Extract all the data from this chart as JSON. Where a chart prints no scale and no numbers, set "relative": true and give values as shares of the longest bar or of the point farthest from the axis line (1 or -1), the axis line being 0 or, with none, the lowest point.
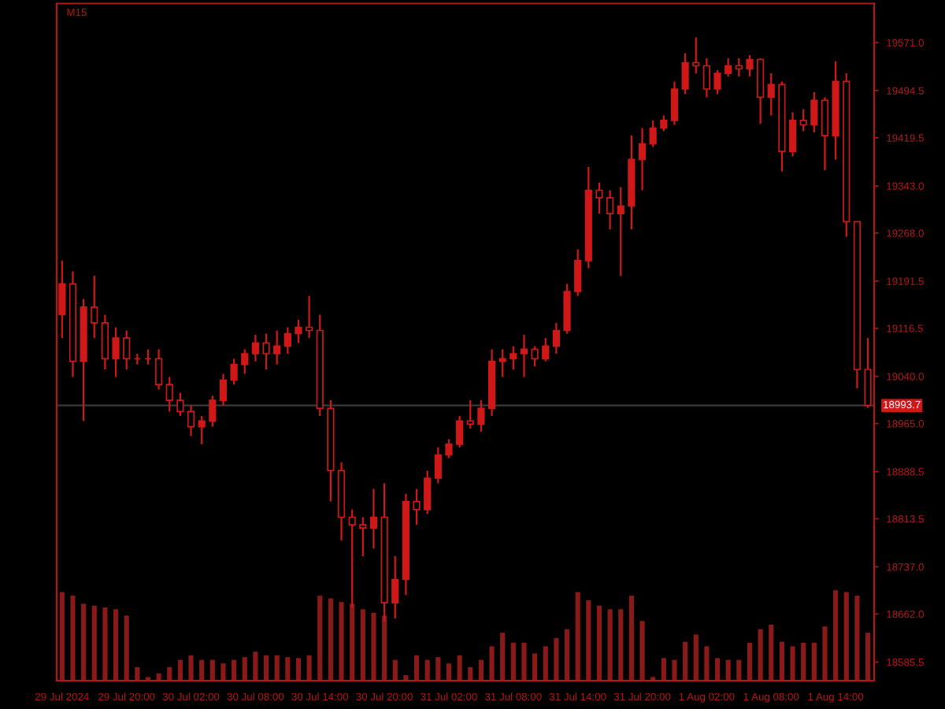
{
  "chart_data": [
    {
      "type": "candlestick",
      "title": "M15",
      "color": "#d01818",
      "x": [
        "2024-07-29T14:00",
        "2024-07-29T15:00",
        "2024-07-29T16:00",
        "2024-07-29T17:00",
        "2024-07-29T18:00",
        "2024-07-29T19:00",
        "2024-07-29T20:00",
        "2024-07-29T21:00",
        "2024-07-29T22:00",
        "2024-07-29T23:00",
        "2024-07-30T00:00",
        "2024-07-30T01:00",
        "2024-07-30T02:00",
        "2024-07-30T03:00",
        "2024-07-30T04:00",
        "2024-07-30T05:00",
        "2024-07-30T06:00",
        "2024-07-30T07:00",
        "2024-07-30T08:00",
        "2024-07-30T09:00",
        "2024-07-30T10:00",
        "2024-07-30T11:00",
        "2024-07-30T12:00",
        "2024-07-30T13:00",
        "2024-07-30T14:00",
        "2024-07-30T15:00",
        "2024-07-30T16:00",
        "2024-07-30T17:00",
        "2024-07-30T18:00",
        "2024-07-30T19:00",
        "2024-07-30T20:00",
        "2024-07-30T21:00",
        "2024-07-30T22:00",
        "2024-07-30T23:00",
        "2024-07-31T00:00",
        "2024-07-31T01:00",
        "2024-07-31T02:00",
        "2024-07-31T03:00",
        "2024-07-31T04:00",
        "2024-07-31T05:00",
        "2024-07-31T06:00",
        "2024-07-31T07:00",
        "2024-07-31T08:00",
        "2024-07-31T09:00",
        "2024-07-31T10:00",
        "2024-07-31T11:00",
        "2024-07-31T12:00",
        "2024-07-31T13:00",
        "2024-07-31T14:00",
        "2024-07-31T15:00",
        "2024-07-31T16:00",
        "2024-07-31T17:00",
        "2024-07-31T18:00",
        "2024-07-31T19:00",
        "2024-07-31T20:00",
        "2024-07-31T21:00",
        "2024-07-31T22:00",
        "2024-07-31T23:00",
        "2024-08-01T00:00",
        "2024-08-01T01:00",
        "2024-08-01T02:00",
        "2024-08-01T03:00",
        "2024-08-01T04:00",
        "2024-08-01T05:00",
        "2024-08-01T06:00",
        "2024-08-01T07:00",
        "2024-08-01T08:00",
        "2024-08-01T09:00",
        "2024-08-01T10:00",
        "2024-08-01T11:00",
        "2024-08-01T12:00",
        "2024-08-01T13:00",
        "2024-08-01T14:00",
        "2024-08-01T15:00",
        "2024-08-01T16:00",
        "2024-08-01T17:00"
      ],
      "ohlc": [
        [
          19138,
          19224,
          19101,
          19187
        ],
        [
          19187,
          19207,
          19039,
          19064
        ],
        [
          19064,
          19163,
          18969,
          19150
        ],
        [
          19150,
          19200,
          19101,
          19125
        ],
        [
          19125,
          19138,
          19051,
          19068
        ],
        [
          19068,
          19118,
          19039,
          19101
        ],
        [
          19101,
          19113,
          19051,
          19068
        ],
        [
          19068,
          19076,
          19059,
          19068
        ],
        [
          19068,
          19083,
          19059,
          19068
        ],
        [
          19068,
          19083,
          19019,
          19027
        ],
        [
          19027,
          19039,
          18984,
          19002
        ],
        [
          19002,
          19014,
          18977,
          18984
        ],
        [
          18984,
          18994,
          18945,
          18960
        ],
        [
          18960,
          18977,
          18932,
          18969
        ],
        [
          18969,
          19009,
          18960,
          19002
        ],
        [
          19002,
          19044,
          18994,
          19034
        ],
        [
          19034,
          19068,
          19027,
          19059
        ],
        [
          19059,
          19083,
          19044,
          19076
        ],
        [
          19076,
          19106,
          19064,
          19093
        ],
        [
          19093,
          19108,
          19051,
          19076
        ],
        [
          19076,
          19113,
          19059,
          19088
        ],
        [
          19088,
          19118,
          19076,
          19108
        ],
        [
          19108,
          19130,
          19093,
          19118
        ],
        [
          19118,
          19168,
          19101,
          19113
        ],
        [
          19113,
          19138,
          18977,
          18989
        ],
        [
          18989,
          19002,
          18841,
          18890
        ],
        [
          18890,
          18903,
          18779,
          18816
        ],
        [
          18816,
          18828,
          18672,
          18804
        ],
        [
          18804,
          18816,
          18754,
          18799
        ],
        [
          18799,
          18861,
          18766,
          18816
        ],
        [
          18816,
          18870,
          18650,
          18680
        ],
        [
          18680,
          18754,
          18655,
          18717
        ],
        [
          18717,
          18853,
          18692,
          18841
        ],
        [
          18841,
          18861,
          18804,
          18828
        ],
        [
          18828,
          18890,
          18821,
          18878
        ],
        [
          18878,
          18927,
          18870,
          18915
        ],
        [
          18915,
          18940,
          18910,
          18932
        ],
        [
          18932,
          18977,
          18927,
          18969
        ],
        [
          18969,
          19002,
          18957,
          18964
        ],
        [
          18964,
          19002,
          18952,
          18989
        ],
        [
          18989,
          19083,
          18977,
          19064
        ],
        [
          19064,
          19083,
          19039,
          19068
        ],
        [
          19068,
          19088,
          19051,
          19076
        ],
        [
          19076,
          19106,
          19039,
          19083
        ],
        [
          19083,
          19088,
          19056,
          19068
        ],
        [
          19068,
          19101,
          19064,
          19088
        ],
        [
          19088,
          19125,
          19076,
          19113
        ],
        [
          19113,
          19187,
          19108,
          19175
        ],
        [
          19175,
          19242,
          19168,
          19224
        ],
        [
          19224,
          19373,
          19212,
          19336
        ],
        [
          19336,
          19348,
          19299,
          19324
        ],
        [
          19324,
          19336,
          19274,
          19299
        ],
        [
          19299,
          19341,
          19200,
          19311
        ],
        [
          19311,
          19423,
          19274,
          19385
        ],
        [
          19385,
          19435,
          19336,
          19410
        ],
        [
          19410,
          19447,
          19405,
          19435
        ],
        [
          19435,
          19455,
          19430,
          19447
        ],
        [
          19447,
          19509,
          19440,
          19497
        ],
        [
          19497,
          19554,
          19489,
          19539
        ],
        [
          19539,
          19579,
          19522,
          19534
        ],
        [
          19534,
          19546,
          19484,
          19497
        ],
        [
          19497,
          19527,
          19489,
          19522
        ],
        [
          19522,
          19546,
          19517,
          19534
        ],
        [
          19534,
          19546,
          19517,
          19529
        ],
        [
          19529,
          19551,
          19517,
          19544
        ],
        [
          19544,
          19546,
          19442,
          19484
        ],
        [
          19484,
          19522,
          19455,
          19504
        ],
        [
          19504,
          19509,
          19366,
          19398
        ],
        [
          19398,
          19460,
          19390,
          19447
        ],
        [
          19447,
          19465,
          19430,
          19440
        ],
        [
          19440,
          19492,
          19428,
          19479
        ],
        [
          19479,
          19484,
          19368,
          19423
        ],
        [
          19423,
          19541,
          19385,
          19509
        ],
        [
          19509,
          19522,
          19262,
          19286
        ],
        [
          19286,
          19286,
          19021,
          19051
        ],
        [
          19051,
          19101,
          18990,
          18993.7
        ]
      ],
      "xlim": [
        "2024-07-29T13:30",
        "2024-08-01T17:35"
      ],
      "ylim": [
        18556,
        19633
      ],
      "yticks": [
        {
          "value": 19571,
          "label": "19571.0"
        },
        19494.5,
        19419.5,
        {
          "value": 19343,
          "label": "19343.0"
        },
        {
          "value": 19268,
          "label": "19268.0"
        },
        19191.5,
        19116.5,
        {
          "value": 19040,
          "label": "19040.0"
        },
        {
          "value": 18965,
          "label": "18965.0"
        },
        18888.5,
        18813.5,
        {
          "value": 18737,
          "label": "18737.0"
        },
        {
          "value": 18662,
          "label": "18662.0"
        },
        18585.5
      ],
      "ref_lines": [
        {
          "axis": "y",
          "value": 18993.7,
          "label": "18993.7",
          "color": "#3a3a3a"
        }
      ],
      "tick_labels": "y",
      "grid": false,
      "legend": false
    },
    {
      "type": "bar",
      "relative": true,
      "color": "#8a1a1a",
      "x": [
        "2024-07-29T14:00",
        "2024-07-29T15:00",
        "2024-07-29T16:00",
        "2024-07-29T17:00",
        "2024-07-29T18:00",
        "2024-07-29T19:00",
        "2024-07-29T20:00",
        "2024-07-29T21:00",
        "2024-07-29T22:00",
        "2024-07-29T23:00",
        "2024-07-30T00:00",
        "2024-07-30T01:00",
        "2024-07-30T02:00",
        "2024-07-30T03:00",
        "2024-07-30T04:00",
        "2024-07-30T05:00",
        "2024-07-30T06:00",
        "2024-07-30T07:00",
        "2024-07-30T08:00",
        "2024-07-30T09:00",
        "2024-07-30T10:00",
        "2024-07-30T11:00",
        "2024-07-30T12:00",
        "2024-07-30T13:00",
        "2024-07-30T14:00",
        "2024-07-30T15:00",
        "2024-07-30T16:00",
        "2024-07-30T17:00",
        "2024-07-30T18:00",
        "2024-07-30T19:00",
        "2024-07-30T20:00",
        "2024-07-30T21:00",
        "2024-07-30T22:00",
        "2024-07-30T23:00",
        "2024-07-31T00:00",
        "2024-07-31T01:00",
        "2024-07-31T02:00",
        "2024-07-31T03:00",
        "2024-07-31T04:00",
        "2024-07-31T05:00",
        "2024-07-31T06:00",
        "2024-07-31T07:00",
        "2024-07-31T08:00",
        "2024-07-31T09:00",
        "2024-07-31T10:00",
        "2024-07-31T11:00",
        "2024-07-31T12:00",
        "2024-07-31T13:00",
        "2024-07-31T14:00",
        "2024-07-31T15:00",
        "2024-07-31T16:00",
        "2024-07-31T17:00",
        "2024-07-31T18:00",
        "2024-07-31T19:00",
        "2024-07-31T20:00",
        "2024-07-31T21:00",
        "2024-07-31T22:00",
        "2024-07-31T23:00",
        "2024-08-01T00:00",
        "2024-08-01T01:00",
        "2024-08-01T02:00",
        "2024-08-01T03:00",
        "2024-08-01T04:00",
        "2024-08-01T05:00",
        "2024-08-01T06:00",
        "2024-08-01T07:00",
        "2024-08-01T08:00",
        "2024-08-01T09:00",
        "2024-08-01T10:00",
        "2024-08-01T11:00",
        "2024-08-01T12:00",
        "2024-08-01T13:00",
        "2024-08-01T14:00",
        "2024-08-01T15:00",
        "2024-08-01T16:00",
        "2024-08-01T17:00"
      ],
      "values": [
        0.98,
        0.94,
        0.85,
        0.83,
        0.81,
        0.79,
        0.72,
        0.15,
        0.04,
        0.08,
        0.15,
        0.23,
        0.28,
        0.23,
        0.23,
        0.19,
        0.23,
        0.26,
        0.32,
        0.28,
        0.28,
        0.26,
        0.25,
        0.28,
        0.94,
        0.91,
        0.87,
        0.85,
        0.79,
        0.75,
        0.72,
        0.23,
        0.06,
        0.28,
        0.23,
        0.26,
        0.19,
        0.28,
        0.15,
        0.23,
        0.38,
        0.53,
        0.42,
        0.42,
        0.3,
        0.38,
        0.47,
        0.57,
        0.98,
        0.89,
        0.83,
        0.79,
        0.79,
        0.94,
        0.66,
        0.04,
        0.25,
        0.23,
        0.43,
        0.51,
        0.38,
        0.25,
        0.23,
        0.23,
        0.42,
        0.57,
        0.62,
        0.43,
        0.38,
        0.42,
        0.42,
        0.6,
        1,
        0.98,
        0.94,
        0.53
      ],
      "xlim": [
        "2024-07-29T13:30",
        "2024-08-01T17:35"
      ],
      "xticks": [
        {
          "value": "2024-07-29T14:00",
          "label": "29 Jul 2024"
        },
        {
          "value": "2024-07-29T20:00",
          "label": "29 Jul 20:00"
        },
        {
          "value": "2024-07-30T02:00",
          "label": "30 Jul 02:00"
        },
        {
          "value": "2024-07-30T08:00",
          "label": "30 Jul 08:00"
        },
        {
          "value": "2024-07-30T14:00",
          "label": "30 Jul 14:00"
        },
        {
          "value": "2024-07-30T20:00",
          "label": "30 Jul 20:00"
        },
        {
          "value": "2024-07-31T02:00",
          "label": "31 Jul 02:00"
        },
        {
          "value": "2024-07-31T08:00",
          "label": "31 Jul 08:00"
        },
        {
          "value": "2024-07-31T14:00",
          "label": "31 Jul 14:00"
        },
        {
          "value": "2024-07-31T20:00",
          "label": "31 Jul 20:00"
        },
        {
          "value": "2024-08-01T02:00",
          "label": "1 Aug 02:00"
        },
        {
          "value": "2024-08-01T08:00",
          "label": "1 Aug 08:00"
        },
        {
          "value": "2024-08-01T14:00",
          "label": "1 Aug 14:00"
        }
      ],
      "tick_labels": "x",
      "grid": false,
      "legend": false
    }
  ]
}
